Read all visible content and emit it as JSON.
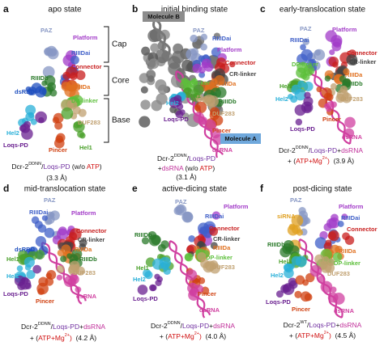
{
  "panels": [
    {
      "letter": "a",
      "title": "apo state",
      "labels": [
        {
          "text": "PAZ",
          "color": "#8797c4"
        },
        {
          "text": "Platform",
          "color": "#a23bc8"
        },
        {
          "text": "RIIIDai",
          "color": "#3f5fc8"
        },
        {
          "text": "Connector",
          "color": "#c81e1e"
        },
        {
          "text": "RIIIDb",
          "color": "#2a7a2a"
        },
        {
          "text": "dsRBD",
          "color": "#1f4fbf"
        },
        {
          "text": "RIIIDa",
          "color": "#e0701f"
        },
        {
          "text": "DP-linker",
          "color": "#5cbf3a"
        },
        {
          "text": "DUF283",
          "color": "#c0a070"
        },
        {
          "text": "Hel2",
          "color": "#2ab0d8"
        },
        {
          "text": "Loqs-PD",
          "color": "#6a2090"
        },
        {
          "text": "Pincer",
          "color": "#d04010"
        },
        {
          "text": "Hel1",
          "color": "#4aa02a"
        }
      ],
      "brackets": [
        "Cap",
        "Core",
        "Base"
      ],
      "caption": [
        [
          "Dcr-2",
          "DDNN",
          "/",
          "Loqs-PD",
          " (w/o ",
          "ATP",
          ")"
        ],
        [
          "(3.3 Å)"
        ]
      ]
    },
    {
      "letter": "b",
      "title": "initial binding state",
      "labels": [
        {
          "text": "PAZ",
          "color": "#8797c4"
        },
        {
          "text": "RIIIDai",
          "color": "#3f5fc8"
        },
        {
          "text": "Platform",
          "color": "#a23bc8"
        },
        {
          "text": "Connector",
          "color": "#c81e1e"
        },
        {
          "text": "CR-linker",
          "color": "#444444"
        },
        {
          "text": "DP-linker",
          "color": "#5cbf3a"
        },
        {
          "text": "RIIIDa",
          "color": "#e0701f"
        },
        {
          "text": "Hel1",
          "color": "#4aa02a"
        },
        {
          "text": "RIIIDb",
          "color": "#2a7a2a"
        },
        {
          "text": "Hel2",
          "color": "#2ab0d8"
        },
        {
          "text": "DUF283",
          "color": "#c0a070"
        },
        {
          "text": "Loqs-PD",
          "color": "#6a2090"
        },
        {
          "text": "Pincer",
          "color": "#d04010"
        },
        {
          "text": "dsRNA",
          "color": "#d040a0"
        }
      ],
      "boxes": [
        "Molecule B",
        "Molecule A"
      ],
      "caption": [
        [
          "Dcr-2",
          "DDNN",
          "/",
          "Loqs-PD"
        ],
        [
          "+",
          "dsRNA",
          " (w/o ",
          "ATP",
          ")"
        ],
        [
          "(3.1 Å)"
        ]
      ]
    },
    {
      "letter": "c",
      "title": "early-translocation state",
      "labels": [
        {
          "text": "PAZ",
          "color": "#8797c4"
        },
        {
          "text": "Platform",
          "color": "#a23bc8"
        },
        {
          "text": "RIIIDai",
          "color": "#3f5fc8"
        },
        {
          "text": "Connector",
          "color": "#c81e1e"
        },
        {
          "text": "CR-linker",
          "color": "#444444"
        },
        {
          "text": "DP-linker",
          "color": "#5cbf3a"
        },
        {
          "text": "RIIIDa",
          "color": "#e0701f"
        },
        {
          "text": "RIIIDb",
          "color": "#2a7a2a"
        },
        {
          "text": "Hel1",
          "color": "#4aa02a"
        },
        {
          "text": "Hel2",
          "color": "#2ab0d8"
        },
        {
          "text": "DUF283",
          "color": "#c0a070"
        },
        {
          "text": "Pincer",
          "color": "#d04010"
        },
        {
          "text": "Loqs-PD",
          "color": "#6a2090"
        },
        {
          "text": "dsRNA",
          "color": "#d040a0"
        }
      ],
      "caption": [
        [
          "Dcr-2",
          "DDNN",
          "/",
          "Loqs-PD",
          "+",
          "dsRNA"
        ],
        [
          "+ (",
          "ATP+Mg",
          "2+",
          ")",
          "  (3.9 Å)"
        ]
      ]
    },
    {
      "letter": "d",
      "title": "mid-translocation state",
      "labels": [
        {
          "text": "PAZ",
          "color": "#8797c4"
        },
        {
          "text": "RIIIDai",
          "color": "#3f5fc8"
        },
        {
          "text": "Platform",
          "color": "#a23bc8"
        },
        {
          "text": "Connector",
          "color": "#c81e1e"
        },
        {
          "text": "CR-linker",
          "color": "#444444"
        },
        {
          "text": "dsRBD",
          "color": "#1f4fbf"
        },
        {
          "text": "RIIIDa",
          "color": "#e0701f"
        },
        {
          "text": "Hel1",
          "color": "#4aa02a"
        },
        {
          "text": "RIIIDb",
          "color": "#2a7a2a"
        },
        {
          "text": "Hel2",
          "color": "#2ab0d8"
        },
        {
          "text": "DUF283",
          "color": "#c0a070"
        },
        {
          "text": "Loqs-PD",
          "color": "#6a2090"
        },
        {
          "text": "Pincer",
          "color": "#d04010"
        },
        {
          "text": "dsRNA",
          "color": "#d040a0"
        }
      ],
      "caption": [
        [
          "Dcr-2",
          "DDNN",
          "/",
          "Loqs-PD",
          "+",
          "dsRNA"
        ],
        [
          "+ (",
          "ATP+Mg",
          "2+",
          ")",
          "  (4.2 Å)"
        ]
      ]
    },
    {
      "letter": "e",
      "title": "active-dicing state",
      "labels": [
        {
          "text": "PAZ",
          "color": "#8797c4"
        },
        {
          "text": "Platform",
          "color": "#a23bc8"
        },
        {
          "text": "RIIIDai",
          "color": "#3f5fc8"
        },
        {
          "text": "Connector",
          "color": "#c81e1e"
        },
        {
          "text": "RIIIDb",
          "color": "#2a7a2a"
        },
        {
          "text": "CR-linker",
          "color": "#444444"
        },
        {
          "text": "RIIIDa",
          "color": "#e0701f"
        },
        {
          "text": "DP-linker",
          "color": "#5cbf3a"
        },
        {
          "text": "DUF283",
          "color": "#c0a070"
        },
        {
          "text": "Hel1",
          "color": "#4aa02a"
        },
        {
          "text": "Hel2",
          "color": "#2ab0d8"
        },
        {
          "text": "Loqs-PD",
          "color": "#6a2090"
        },
        {
          "text": "Pincer",
          "color": "#d04010"
        },
        {
          "text": "dsRNA",
          "color": "#d040a0"
        }
      ],
      "caption": [
        [
          "Dcr-2",
          "DDNN",
          "/",
          "Loqs-PD",
          "+",
          "dsRNA"
        ],
        [
          "+ (",
          "ATP+Mg",
          "2+",
          ")",
          "  (4.0 Å)"
        ]
      ]
    },
    {
      "letter": "f",
      "title": "post-dicing state",
      "labels": [
        {
          "text": "PAZ",
          "color": "#8797c4"
        },
        {
          "text": "Platform",
          "color": "#a23bc8"
        },
        {
          "text": "siRNA",
          "color": "#e0a020"
        },
        {
          "text": "RIIIDai",
          "color": "#3f5fc8"
        },
        {
          "text": "Connector",
          "color": "#c81e1e"
        },
        {
          "text": "RIIIDb",
          "color": "#2a7a2a"
        },
        {
          "text": "RIIIDa",
          "color": "#e0701f"
        },
        {
          "text": "Hel1",
          "color": "#4aa02a"
        },
        {
          "text": "DP-linker",
          "color": "#5cbf3a"
        },
        {
          "text": "Hel2",
          "color": "#2ab0d8"
        },
        {
          "text": "DUF283",
          "color": "#c0a070"
        },
        {
          "text": "Loqs-PD",
          "color": "#6a2090"
        },
        {
          "text": "Pincer",
          "color": "#d04010"
        },
        {
          "text": "dsRNA",
          "color": "#d040a0"
        }
      ],
      "caption": [
        [
          "Dcr-2",
          "WT",
          "/",
          "Loqs-PD",
          "+",
          "dsRNA"
        ],
        [
          "+ (",
          "ATP+Mg",
          "2+",
          ")",
          "  (4.5 Å)"
        ]
      ]
    }
  ]
}
